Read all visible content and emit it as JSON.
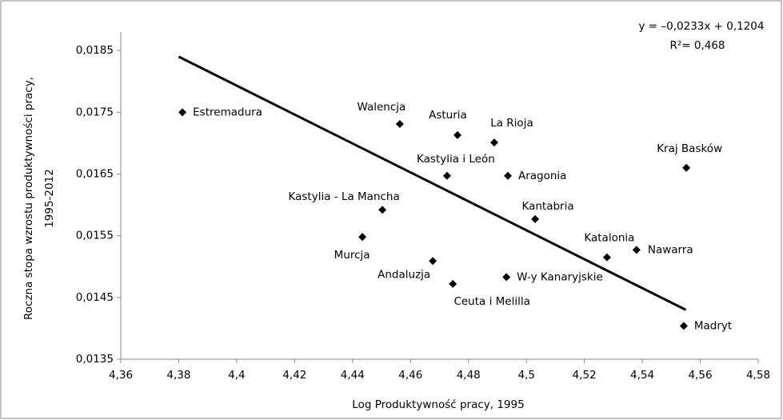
{
  "chart_data": {
    "type": "scatter",
    "x_label": "Log Produktywność pracy, 1995",
    "y_label": [
      "Roczna stopa wzrostu produktywności pracy,",
      "1995-2012"
    ],
    "equation": "y = –0,0233x + 0,1204",
    "r_squared": "R²= 0,468",
    "xlim": [
      4.36,
      4.58
    ],
    "ylim": [
      0.0135,
      0.0188
    ],
    "xticks": [
      {
        "value": 4.36,
        "label": "4,36"
      },
      {
        "value": 4.38,
        "label": "4,38"
      },
      {
        "value": 4.4,
        "label": "4,4"
      },
      {
        "value": 4.42,
        "label": "4,42"
      },
      {
        "value": 4.44,
        "label": "4,44"
      },
      {
        "value": 4.46,
        "label": "4,46"
      },
      {
        "value": 4.48,
        "label": "4,48"
      },
      {
        "value": 4.5,
        "label": "4,5"
      },
      {
        "value": 4.52,
        "label": "4,52"
      },
      {
        "value": 4.54,
        "label": "4,54"
      },
      {
        "value": 4.56,
        "label": "4,56"
      },
      {
        "value": 4.58,
        "label": "4,58"
      }
    ],
    "yticks": [
      {
        "value": 0.0135,
        "label": "0,0135"
      },
      {
        "value": 0.0145,
        "label": "0,0145"
      },
      {
        "value": 0.0155,
        "label": "0,0155"
      },
      {
        "value": 0.0165,
        "label": "0,0165"
      },
      {
        "value": 0.0175,
        "label": "0,0175"
      },
      {
        "value": 0.0185,
        "label": "0,0185"
      }
    ],
    "color": "#000000",
    "labels": [
      "Estremadura",
      "Walencja",
      "Asturia",
      "La Rioja",
      "Kraj Basków",
      "Kastylia i León",
      "Aragonia",
      "Kastylia - La Mancha",
      "Kantabria",
      "Murcja",
      "Nawarra",
      "Katalonia",
      "Andaluzja",
      "W-y Kanaryjskie",
      "Ceuta i Melilla",
      "Madryt"
    ],
    "x": [
      4.3813,
      4.4563,
      4.4762,
      4.4889,
      4.5552,
      4.4726,
      4.4936,
      4.4503,
      4.503,
      4.4434,
      4.538,
      4.5278,
      4.4677,
      4.4931,
      4.4746,
      4.5543
    ],
    "y": [
      0.0175,
      0.01731,
      0.01713,
      0.01701,
      0.0166,
      0.01647,
      0.01647,
      0.01592,
      0.01577,
      0.01548,
      0.01527,
      0.01515,
      0.01509,
      0.01483,
      0.01472,
      0.01404
    ],
    "trendline": {
      "x": [
        4.38,
        4.555
      ],
      "y": [
        0.0184,
        0.0143
      ]
    }
  }
}
